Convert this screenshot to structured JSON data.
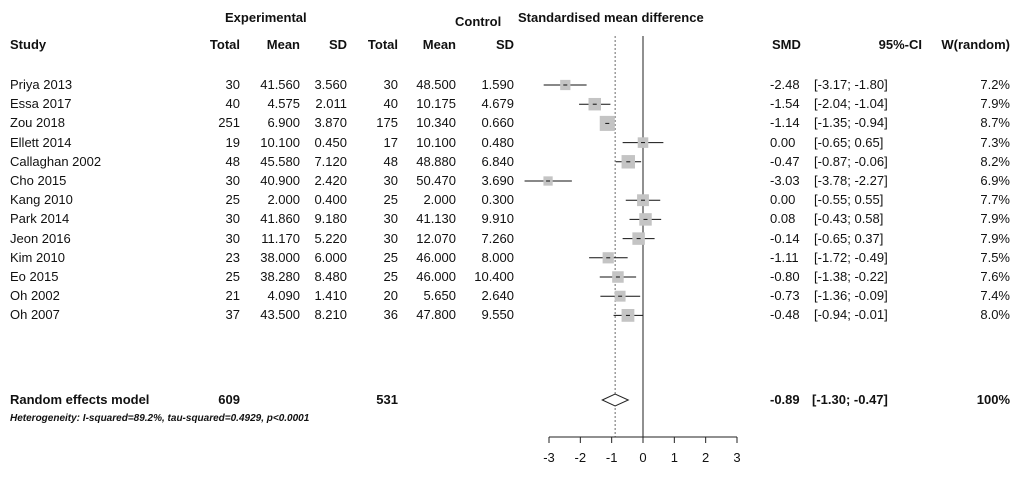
{
  "headers": {
    "experimental": "Experimental",
    "control": "Control",
    "smd_title": "Standardised mean difference",
    "study": "Study",
    "exp_total": "Total",
    "exp_mean": "Mean",
    "exp_sd": "SD",
    "ctl_total": "Total",
    "ctl_mean": "Mean",
    "ctl_sd": "SD",
    "smd": "SMD",
    "ci": "95%-CI",
    "weight": "W(random)"
  },
  "studies": [
    {
      "study": "Priya 2013",
      "exp_total": "30",
      "exp_mean": "41.560",
      "exp_sd": "3.560",
      "ctl_total": "30",
      "ctl_mean": "48.500",
      "ctl_sd": "1.590",
      "smd": "-2.48",
      "ci": "[-3.17; -1.80]",
      "weight": "7.2%"
    },
    {
      "study": "Essa 2017",
      "exp_total": "40",
      "exp_mean": "4.575",
      "exp_sd": "2.011",
      "ctl_total": "40",
      "ctl_mean": "10.175",
      "ctl_sd": "4.679",
      "smd": "-1.54",
      "ci": "[-2.04; -1.04]",
      "weight": "7.9%"
    },
    {
      "study": "Zou 2018",
      "exp_total": "251",
      "exp_mean": "6.900",
      "exp_sd": "3.870",
      "ctl_total": "175",
      "ctl_mean": "10.340",
      "ctl_sd": "0.660",
      "smd": "-1.14",
      "ci": "[-1.35; -0.94]",
      "weight": "8.7%"
    },
    {
      "study": "Ellett 2014",
      "exp_total": "19",
      "exp_mean": "10.100",
      "exp_sd": "0.450",
      "ctl_total": "17",
      "ctl_mean": "10.100",
      "ctl_sd": "0.480",
      "smd": "0.00",
      "ci": "[-0.65; 0.65]",
      "weight": "7.3%"
    },
    {
      "study": "Callaghan 2002",
      "exp_total": "48",
      "exp_mean": "45.580",
      "exp_sd": "7.120",
      "ctl_total": "48",
      "ctl_mean": "48.880",
      "ctl_sd": "6.840",
      "smd": "-0.47",
      "ci": "[-0.87; -0.06]",
      "weight": "8.2%"
    },
    {
      "study": "Cho 2015",
      "exp_total": "30",
      "exp_mean": "40.900",
      "exp_sd": "2.420",
      "ctl_total": "30",
      "ctl_mean": "50.470",
      "ctl_sd": "3.690",
      "smd": "-3.03",
      "ci": "[-3.78; -2.27]",
      "weight": "6.9%"
    },
    {
      "study": "Kang 2010",
      "exp_total": "25",
      "exp_mean": "2.000",
      "exp_sd": "0.400",
      "ctl_total": "25",
      "ctl_mean": "2.000",
      "ctl_sd": "0.300",
      "smd": "0.00",
      "ci": "[-0.55; 0.55]",
      "weight": "7.7%"
    },
    {
      "study": "Park 2014",
      "exp_total": "30",
      "exp_mean": "41.860",
      "exp_sd": "9.180",
      "ctl_total": "30",
      "ctl_mean": "41.130",
      "ctl_sd": "9.910",
      "smd": "0.08",
      "ci": "[-0.43; 0.58]",
      "weight": "7.9%"
    },
    {
      "study": "Jeon 2016",
      "exp_total": "30",
      "exp_mean": "11.170",
      "exp_sd": "5.220",
      "ctl_total": "30",
      "ctl_mean": "12.070",
      "ctl_sd": "7.260",
      "smd": "-0.14",
      "ci": "[-0.65; 0.37]",
      "weight": "7.9%"
    },
    {
      "study": "Kim 2010",
      "exp_total": "23",
      "exp_mean": "38.000",
      "exp_sd": "6.000",
      "ctl_total": "25",
      "ctl_mean": "46.000",
      "ctl_sd": "8.000",
      "smd": "-1.11",
      "ci": "[-1.72; -0.49]",
      "weight": "7.5%"
    },
    {
      "study": "Eo 2015",
      "exp_total": "25",
      "exp_mean": "38.280",
      "exp_sd": "8.480",
      "ctl_total": "25",
      "ctl_mean": "46.000",
      "ctl_sd": "10.400",
      "smd": "-0.80",
      "ci": "[-1.38; -0.22]",
      "weight": "7.6%"
    },
    {
      "study": "Oh 2002",
      "exp_total": "21",
      "exp_mean": "4.090",
      "exp_sd": "1.410",
      "ctl_total": "20",
      "ctl_mean": "5.650",
      "ctl_sd": "2.640",
      "smd": "-0.73",
      "ci": "[-1.36; -0.09]",
      "weight": "7.4%"
    },
    {
      "study": "Oh 2007",
      "exp_total": "37",
      "exp_mean": "43.500",
      "exp_sd": "8.210",
      "ctl_total": "36",
      "ctl_mean": "47.800",
      "ctl_sd": "9.550",
      "smd": "-0.48",
      "ci": "[-0.94; -0.01]",
      "weight": "8.0%"
    }
  ],
  "summary": {
    "label": "Random effects model",
    "exp_total": "609",
    "ctl_total": "531",
    "smd": "-0.89",
    "ci": "[-1.30; -0.47]",
    "weight": "100%"
  },
  "heterogeneity": "Heterogeneity: I-squared=89.2%, tau-squared=0.4929, p<0.0001",
  "chart_data": {
    "type": "forest",
    "title": "Standardised mean difference",
    "xlim": [
      -3,
      3
    ],
    "xticks": [
      -3,
      -2,
      -1,
      0,
      1,
      2,
      3
    ],
    "reference_line": 0,
    "summary_line": -0.89,
    "studies": [
      {
        "name": "Priya 2013",
        "smd": -2.48,
        "lower": -3.17,
        "upper": -1.8,
        "weight": 7.2
      },
      {
        "name": "Essa 2017",
        "smd": -1.54,
        "lower": -2.04,
        "upper": -1.04,
        "weight": 7.9
      },
      {
        "name": "Zou 2018",
        "smd": -1.14,
        "lower": -1.35,
        "upper": -0.94,
        "weight": 8.7
      },
      {
        "name": "Ellett 2014",
        "smd": 0.0,
        "lower": -0.65,
        "upper": 0.65,
        "weight": 7.3
      },
      {
        "name": "Callaghan 2002",
        "smd": -0.47,
        "lower": -0.87,
        "upper": -0.06,
        "weight": 8.2
      },
      {
        "name": "Cho 2015",
        "smd": -3.03,
        "lower": -3.78,
        "upper": -2.27,
        "weight": 6.9
      },
      {
        "name": "Kang 2010",
        "smd": 0.0,
        "lower": -0.55,
        "upper": 0.55,
        "weight": 7.7
      },
      {
        "name": "Park 2014",
        "smd": 0.08,
        "lower": -0.43,
        "upper": 0.58,
        "weight": 7.9
      },
      {
        "name": "Jeon 2016",
        "smd": -0.14,
        "lower": -0.65,
        "upper": 0.37,
        "weight": 7.9
      },
      {
        "name": "Kim 2010",
        "smd": -1.11,
        "lower": -1.72,
        "upper": -0.49,
        "weight": 7.5
      },
      {
        "name": "Eo 2015",
        "smd": -0.8,
        "lower": -1.38,
        "upper": -0.22,
        "weight": 7.6
      },
      {
        "name": "Oh 2002",
        "smd": -0.73,
        "lower": -1.36,
        "upper": -0.09,
        "weight": 7.4
      },
      {
        "name": "Oh 2007",
        "smd": -0.48,
        "lower": -0.94,
        "upper": -0.01,
        "weight": 8.0
      }
    ],
    "pooled": {
      "name": "Random effects model",
      "smd": -0.89,
      "lower": -1.3,
      "upper": -0.47,
      "weight": 100
    }
  }
}
